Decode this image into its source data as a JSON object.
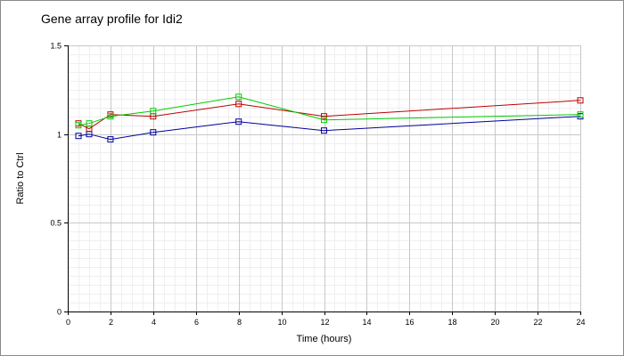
{
  "chart_data": {
    "type": "line",
    "title": "Gene array profile for Idi2",
    "xlabel": "Time (hours)",
    "ylabel": "Ratio to Ctrl",
    "xlim": [
      0,
      24
    ],
    "ylim": [
      0,
      1.5
    ],
    "x_ticks": [
      0,
      2,
      4,
      6,
      8,
      10,
      12,
      14,
      16,
      18,
      20,
      22,
      24
    ],
    "y_ticks": [
      0,
      0.5,
      1,
      1.5
    ],
    "y_tick_labels": [
      "0",
      "0.5",
      "1",
      "1.5"
    ],
    "grid": true,
    "legend": "none",
    "marker": "square",
    "series": [
      {
        "color": "#000099",
        "x": [
          0.5,
          1,
          2,
          4,
          8,
          12,
          24
        ],
        "values": [
          0.99,
          1.0,
          0.97,
          1.01,
          1.07,
          1.02,
          1.1
        ]
      },
      {
        "color": "#bb0000",
        "x": [
          0.5,
          1,
          2,
          4,
          8,
          12,
          24
        ],
        "values": [
          1.06,
          1.03,
          1.11,
          1.1,
          1.17,
          1.1,
          1.19
        ]
      },
      {
        "color": "#00cc00",
        "x": [
          0.5,
          1,
          2,
          4,
          8,
          12,
          24
        ],
        "values": [
          1.05,
          1.06,
          1.1,
          1.13,
          1.21,
          1.08,
          1.11
        ]
      }
    ]
  }
}
